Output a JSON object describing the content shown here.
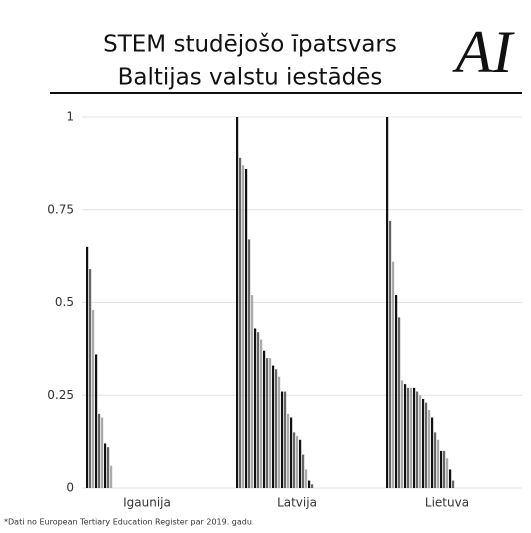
{
  "chart_data": {
    "type": "bar",
    "title": [
      "STEM studējošo īpatsvars",
      "Baltijas valstu iestādēs"
    ],
    "logo": "AI",
    "footnote": "*Dati no European Tertiary Education Register par 2019. gadu",
    "categories": [
      "Igaunija",
      "Latvija",
      "Lietuva"
    ],
    "values": [
      [
        0.65,
        0.59,
        0.48,
        0.36,
        0.2,
        0.19,
        0.12,
        0.11,
        0.06
      ],
      [
        1,
        0.89,
        0.87,
        0.86,
        0.67,
        0.52,
        0.43,
        0.42,
        0.4,
        0.37,
        0.35,
        0.35,
        0.33,
        0.32,
        0.3,
        0.26,
        0.26,
        0.2,
        0.19,
        0.15,
        0.14,
        0.13,
        0.09,
        0.05,
        0.02,
        0.01
      ],
      [
        1,
        0.72,
        0.61,
        0.52,
        0.46,
        0.29,
        0.28,
        0.27,
        0.27,
        0.27,
        0.26,
        0.25,
        0.24,
        0.23,
        0.21,
        0.19,
        0.15,
        0.13,
        0.1,
        0.1,
        0.08,
        0.05,
        0.02
      ]
    ],
    "colors": [
      "#111111",
      "#666666",
      "#aaaaaa"
    ],
    "ylim": [
      0,
      1
    ],
    "yticks": [
      0,
      0.25,
      0.5,
      0.75,
      1
    ],
    "grid": true
  }
}
